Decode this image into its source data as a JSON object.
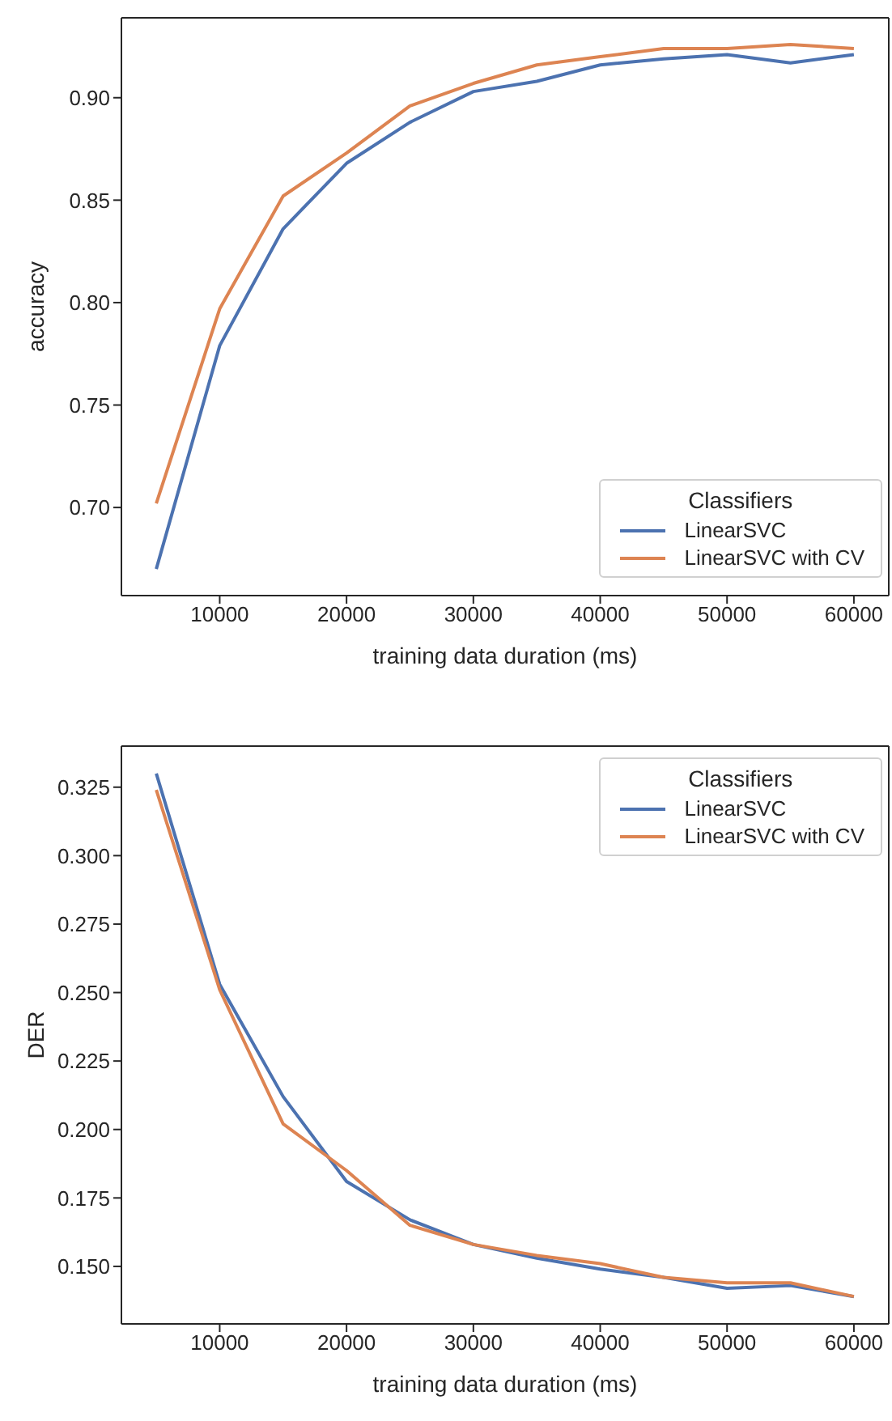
{
  "chart_data": [
    {
      "type": "line",
      "xlabel": "training data duration (ms)",
      "ylabel": "accuracy",
      "legend_title": "Classifiers",
      "legend": "bottom right",
      "x": [
        5000,
        10000,
        15000,
        20000,
        25000,
        30000,
        35000,
        40000,
        45000,
        50000,
        55000,
        60000
      ],
      "series": [
        {
          "name": "LinearSVC",
          "color": "#4c72b0",
          "values": [
            0.67,
            0.779,
            0.836,
            0.868,
            0.888,
            0.903,
            0.908,
            0.916,
            0.919,
            0.921,
            0.917,
            0.921
          ]
        },
        {
          "name": "LinearSVC with CV",
          "color": "#dd8452",
          "values": [
            0.702,
            0.797,
            0.852,
            0.873,
            0.896,
            0.907,
            0.916,
            0.92,
            0.924,
            0.924,
            0.926,
            0.924
          ]
        }
      ],
      "xlim": [
        2250,
        62750
      ],
      "xticks": [
        10000,
        20000,
        30000,
        40000,
        50000,
        60000
      ],
      "ylim": [
        0.657,
        0.939
      ],
      "yticks": [
        {
          "value": 0.7,
          "label": "0.70"
        },
        0.75,
        {
          "value": 0.8,
          "label": "0.80"
        },
        0.85,
        {
          "value": 0.9,
          "label": "0.90"
        }
      ]
    },
    {
      "type": "line",
      "xlabel": "training data duration (ms)",
      "ylabel": "DER",
      "legend_title": "Classifiers",
      "legend": "top right",
      "x": [
        5000,
        10000,
        15000,
        20000,
        25000,
        30000,
        35000,
        40000,
        45000,
        50000,
        55000,
        60000
      ],
      "series": [
        {
          "name": "LinearSVC",
          "color": "#4c72b0",
          "values": [
            0.33,
            0.253,
            0.212,
            0.181,
            0.167,
            0.158,
            0.153,
            0.149,
            0.146,
            0.142,
            0.143,
            0.139
          ]
        },
        {
          "name": "LinearSVC with CV",
          "color": "#dd8452",
          "values": [
            0.324,
            0.251,
            0.202,
            0.185,
            0.165,
            0.158,
            0.154,
            0.151,
            0.146,
            0.144,
            0.144,
            0.139
          ]
        }
      ],
      "xlim": [
        2250,
        62750
      ],
      "xticks": [
        10000,
        20000,
        30000,
        40000,
        50000,
        60000
      ],
      "ylim": [
        0.129,
        0.34
      ],
      "yticks": [
        {
          "value": 0.15,
          "label": "0.150"
        },
        0.175,
        {
          "value": 0.2,
          "label": "0.200"
        },
        0.225,
        {
          "value": 0.25,
          "label": "0.250"
        },
        0.275,
        {
          "value": 0.3,
          "label": "0.300"
        },
        0.325
      ]
    }
  ]
}
